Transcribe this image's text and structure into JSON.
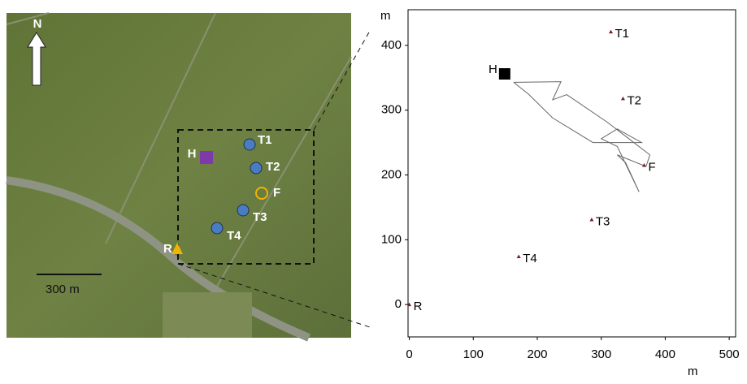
{
  "map": {
    "north": "N",
    "scale": "300 m",
    "H": "H",
    "T1": "T1",
    "T2": "T2",
    "F": "F",
    "T3": "T3",
    "T4": "T4",
    "R": "R"
  },
  "chart_data": {
    "type": "scatter",
    "x_label": "m",
    "y_label": "m",
    "xlim": [
      -2,
      510
    ],
    "ylim": [
      -50,
      455
    ],
    "xticks": [
      0,
      100,
      200,
      300,
      400,
      500
    ],
    "yticks": [
      0,
      100,
      200,
      300,
      400
    ],
    "points": {
      "labels": [
        "T1",
        "T2",
        "F",
        "T3",
        "T4",
        "R",
        "H"
      ],
      "x": [
        315,
        334,
        367,
        285,
        171,
        0,
        149
      ],
      "y": [
        421,
        318,
        215,
        131,
        74,
        0,
        356
      ],
      "markers": [
        "triangle",
        "triangle",
        "triangle",
        "triangle",
        "triangle",
        "triangle",
        "square"
      ],
      "colors": [
        "#7a1f1f",
        "#7a1f1f",
        "#7a1f1f",
        "#7a1f1f",
        "#7a1f1f",
        "#7a1f1f",
        "#000000"
      ]
    },
    "track": {
      "color": "#666666",
      "x": [
        163,
        237,
        224,
        246,
        310,
        376,
        370,
        325,
        338,
        359,
        325,
        300,
        325,
        363,
        287,
        224,
        186,
        163
      ],
      "y": [
        343,
        344,
        316,
        324,
        281,
        231,
        213,
        231,
        219,
        174,
        244,
        256,
        271,
        250,
        250,
        288,
        325,
        343
      ]
    }
  }
}
